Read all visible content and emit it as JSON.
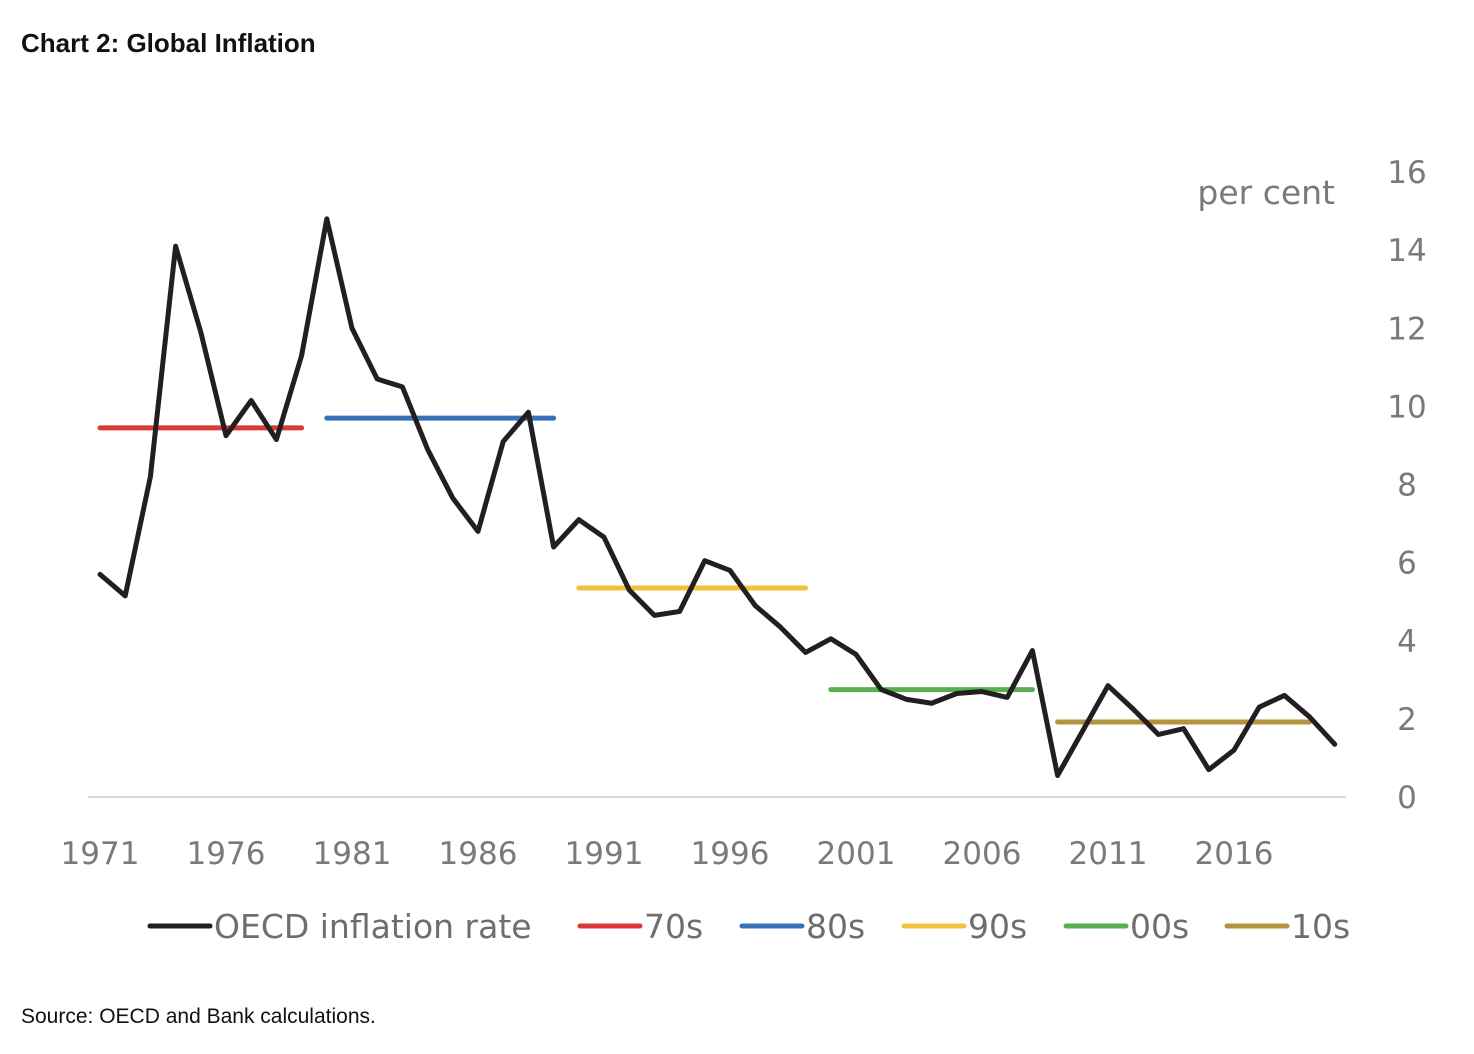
{
  "title": "Chart 2: Global Inflation",
  "source": "Source: OECD and Bank calculations.",
  "chart_data": {
    "type": "line",
    "title": "Chart 2: Global Inflation",
    "ylabel": "per cent",
    "xlabel": "",
    "ylim": [
      0,
      16
    ],
    "yticks": [
      "0",
      "2",
      "4",
      "6",
      "8",
      "10",
      "12",
      "14",
      "16"
    ],
    "xticks": [
      "1971",
      "1976",
      "1981",
      "1986",
      "1991",
      "1996",
      "2001",
      "2006",
      "2011",
      "2016"
    ],
    "grid": false,
    "y_axis_side": "right",
    "legend_position": "bottom",
    "x": [
      1971,
      1972,
      1973,
      1974,
      1975,
      1976,
      1977,
      1978,
      1979,
      1980,
      1981,
      1982,
      1983,
      1984,
      1985,
      1986,
      1987,
      1988,
      1989,
      1990,
      1991,
      1992,
      1993,
      1994,
      1995,
      1996,
      1997,
      1998,
      1999,
      2000,
      2001,
      2002,
      2003,
      2004,
      2005,
      2006,
      2007,
      2008,
      2009,
      2010,
      2011,
      2012,
      2013,
      2014,
      2015,
      2016,
      2017,
      2018,
      2019,
      2020
    ],
    "series": [
      {
        "name": "OECD inflation rate",
        "color": "#231f20",
        "values": [
          5.7,
          5.15,
          8.2,
          14.1,
          11.9,
          9.25,
          10.15,
          9.15,
          11.3,
          14.8,
          12.0,
          10.7,
          10.5,
          8.9,
          7.65,
          6.8,
          9.1,
          9.85,
          6.4,
          7.1,
          6.65,
          5.3,
          4.65,
          4.75,
          6.05,
          5.8,
          4.9,
          4.35,
          3.7,
          4.05,
          3.65,
          2.75,
          2.5,
          2.4,
          2.65,
          2.7,
          2.55,
          3.75,
          0.55,
          1.7,
          2.85,
          2.25,
          1.6,
          1.75,
          0.7,
          1.2,
          2.3,
          2.6,
          2.05,
          1.35
        ]
      },
      {
        "name": "70s",
        "color": "#d93a35",
        "x_range": [
          1971,
          1979
        ],
        "value": 9.45
      },
      {
        "name": "80s",
        "color": "#3a70b8",
        "x_range": [
          1980,
          1989
        ],
        "value": 9.7
      },
      {
        "name": "90s",
        "color": "#f2c23c",
        "x_range": [
          1990,
          1999
        ],
        "value": 5.35
      },
      {
        "name": "00s",
        "color": "#5aae52",
        "x_range": [
          2000,
          2008
        ],
        "value": 2.75
      },
      {
        "name": "10s",
        "color": "#b39240",
        "x_range": [
          2009,
          2019
        ],
        "value": 1.92
      }
    ]
  }
}
